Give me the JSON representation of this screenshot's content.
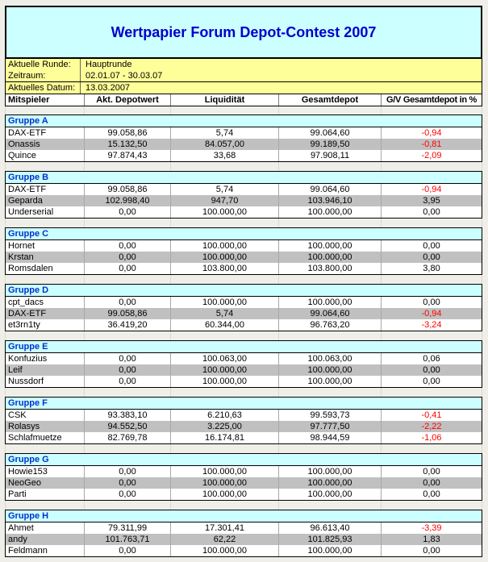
{
  "title": "Wertpapier Forum Depot-Contest 2007",
  "info": {
    "rows": [
      {
        "label": "Aktuelle Runde:",
        "value": "Hauptrunde"
      },
      {
        "label": "Zeitraum:",
        "value": "02.01.07 - 30.03.07"
      },
      {
        "label": "Aktuelles Datum:",
        "value": "13.03.2007"
      }
    ]
  },
  "columns": [
    "Mitspieler",
    "Akt. Depotwert",
    "Liquidität",
    "Gesamtdepot",
    "G/V Gesamtdepot in %"
  ],
  "colors": {
    "banner_background": "#CCFFFF",
    "title_blue": "#0000CC",
    "group_header_blue": "#0033CC",
    "info_yellow": "#FFFF99",
    "row_silver": "#C0C0C0",
    "negative_red": "#FF0000"
  },
  "groups": [
    {
      "name": "Gruppe A",
      "rows": [
        {
          "player": "DAX-ETF",
          "depotwert": "99.058,86",
          "liquiditaet": "5,74",
          "gesamtdepot": "99.064,60",
          "gv": "-0,94"
        },
        {
          "player": "Onassis",
          "depotwert": "15.132,50",
          "liquiditaet": "84.057,00",
          "gesamtdepot": "99.189,50",
          "gv": "-0,81"
        },
        {
          "player": "Quince",
          "depotwert": "97.874,43",
          "liquiditaet": "33,68",
          "gesamtdepot": "97.908,11",
          "gv": "-2,09"
        }
      ]
    },
    {
      "name": "Gruppe B",
      "rows": [
        {
          "player": "DAX-ETF",
          "depotwert": "99.058,86",
          "liquiditaet": "5,74",
          "gesamtdepot": "99.064,60",
          "gv": "-0,94"
        },
        {
          "player": "Geparda",
          "depotwert": "102.998,40",
          "liquiditaet": "947,70",
          "gesamtdepot": "103.946,10",
          "gv": "3,95"
        },
        {
          "player": "Underserial",
          "depotwert": "0,00",
          "liquiditaet": "100.000,00",
          "gesamtdepot": "100.000,00",
          "gv": "0,00"
        }
      ]
    },
    {
      "name": "Gruppe C",
      "rows": [
        {
          "player": "Hornet",
          "depotwert": "0,00",
          "liquiditaet": "100.000,00",
          "gesamtdepot": "100.000,00",
          "gv": "0,00"
        },
        {
          "player": "Krstan",
          "depotwert": "0,00",
          "liquiditaet": "100.000,00",
          "gesamtdepot": "100.000,00",
          "gv": "0,00"
        },
        {
          "player": "Romsdalen",
          "depotwert": "0,00",
          "liquiditaet": "103.800,00",
          "gesamtdepot": "103.800,00",
          "gv": "3,80"
        }
      ]
    },
    {
      "name": "Gruppe D",
      "rows": [
        {
          "player": "cpt_dacs",
          "depotwert": "0,00",
          "liquiditaet": "100.000,00",
          "gesamtdepot": "100.000,00",
          "gv": "0,00"
        },
        {
          "player": "DAX-ETF",
          "depotwert": "99.058,86",
          "liquiditaet": "5,74",
          "gesamtdepot": "99.064,60",
          "gv": "-0,94"
        },
        {
          "player": "et3rn1ty",
          "depotwert": "36.419,20",
          "liquiditaet": "60.344,00",
          "gesamtdepot": "96.763,20",
          "gv": "-3,24"
        }
      ]
    },
    {
      "name": "Gruppe E",
      "rows": [
        {
          "player": "Konfuzius",
          "depotwert": "0,00",
          "liquiditaet": "100.063,00",
          "gesamtdepot": "100.063,00",
          "gv": "0,06"
        },
        {
          "player": "Leif",
          "depotwert": "0,00",
          "liquiditaet": "100.000,00",
          "gesamtdepot": "100.000,00",
          "gv": "0,00"
        },
        {
          "player": "Nussdorf",
          "depotwert": "0,00",
          "liquiditaet": "100.000,00",
          "gesamtdepot": "100.000,00",
          "gv": "0,00"
        }
      ]
    },
    {
      "name": "Gruppe F",
      "rows": [
        {
          "player": "CSK",
          "depotwert": "93.383,10",
          "liquiditaet": "6.210,63",
          "gesamtdepot": "99.593,73",
          "gv": "-0,41"
        },
        {
          "player": "Rolasys",
          "depotwert": "94.552,50",
          "liquiditaet": "3.225,00",
          "gesamtdepot": "97.777,50",
          "gv": "-2,22"
        },
        {
          "player": "Schlafmuetze",
          "depotwert": "82.769,78",
          "liquiditaet": "16.174,81",
          "gesamtdepot": "98.944,59",
          "gv": "-1,06"
        }
      ]
    },
    {
      "name": "Gruppe G",
      "rows": [
        {
          "player": "Howie153",
          "depotwert": "0,00",
          "liquiditaet": "100.000,00",
          "gesamtdepot": "100.000,00",
          "gv": "0,00"
        },
        {
          "player": "NeoGeo",
          "depotwert": "0,00",
          "liquiditaet": "100.000,00",
          "gesamtdepot": "100.000,00",
          "gv": "0,00"
        },
        {
          "player": "Parti",
          "depotwert": "0,00",
          "liquiditaet": "100.000,00",
          "gesamtdepot": "100.000,00",
          "gv": "0,00"
        }
      ]
    },
    {
      "name": "Gruppe H",
      "rows": [
        {
          "player": "Ahmet",
          "depotwert": "79.311,99",
          "liquiditaet": "17.301,41",
          "gesamtdepot": "96.613,40",
          "gv": "-3,39"
        },
        {
          "player": "andy",
          "depotwert": "101.763,71",
          "liquiditaet": "62,22",
          "gesamtdepot": "101.825,93",
          "gv": "1,83"
        },
        {
          "player": "Feldmann",
          "depotwert": "0,00",
          "liquiditaet": "100.000,00",
          "gesamtdepot": "100.000,00",
          "gv": "0,00"
        }
      ]
    }
  ]
}
